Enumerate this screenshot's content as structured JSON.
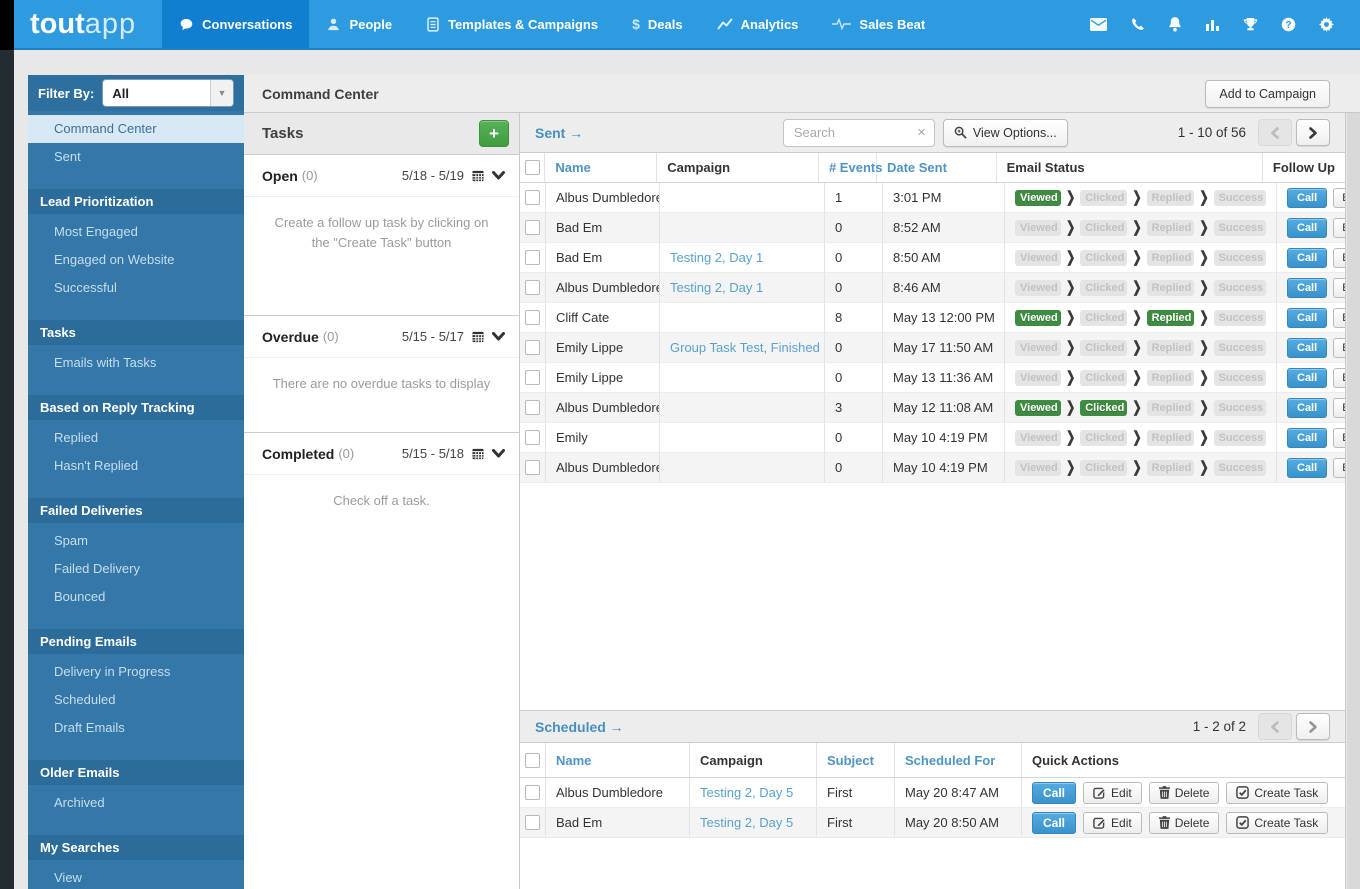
{
  "nav": {
    "logo": {
      "bold": "tout",
      "light": "app"
    },
    "items": [
      {
        "label": "Conversations",
        "icon": "speech-bubble",
        "active": true
      },
      {
        "label": "People",
        "icon": "person",
        "active": false
      },
      {
        "label": "Templates & Campaigns",
        "icon": "document",
        "active": false
      },
      {
        "label": "Deals",
        "icon": "dollar",
        "active": false
      },
      {
        "label": "Analytics",
        "icon": "line-chart",
        "active": false
      },
      {
        "label": "Sales Beat",
        "icon": "pulse",
        "active": false
      }
    ],
    "right_icons": [
      "envelope",
      "phone",
      "bell",
      "bar-chart",
      "trophy",
      "help",
      "gear"
    ]
  },
  "sidebar": {
    "filter_label": "Filter By:",
    "filter_value": "All",
    "groups": [
      {
        "header": null,
        "items": [
          {
            "label": "Command Center",
            "selected": true
          },
          {
            "label": "Sent",
            "selected": false
          }
        ]
      },
      {
        "header": "Lead Prioritization",
        "items": [
          {
            "label": "Most Engaged"
          },
          {
            "label": "Engaged on Website"
          },
          {
            "label": "Successful"
          }
        ]
      },
      {
        "header": "Tasks",
        "items": [
          {
            "label": "Emails with Tasks"
          }
        ]
      },
      {
        "header": "Based on Reply Tracking",
        "items": [
          {
            "label": "Replied"
          },
          {
            "label": "Hasn't Replied"
          }
        ]
      },
      {
        "header": "Failed Deliveries",
        "items": [
          {
            "label": "Spam"
          },
          {
            "label": "Failed Delivery"
          },
          {
            "label": "Bounced"
          }
        ]
      },
      {
        "header": "Pending Emails",
        "items": [
          {
            "label": "Delivery in Progress"
          },
          {
            "label": "Scheduled"
          },
          {
            "label": "Draft Emails"
          }
        ]
      },
      {
        "header": "Older Emails",
        "items": [
          {
            "label": "Archived"
          }
        ]
      },
      {
        "header": "My Searches",
        "items": [
          {
            "label": "View"
          }
        ]
      }
    ]
  },
  "header": {
    "title": "Command Center",
    "add_to_campaign": "Add to Campaign"
  },
  "tasks": {
    "title": "Tasks",
    "add_button": "+",
    "sections": [
      {
        "name": "Open",
        "count": "(0)",
        "range": "5/18 - 5/19",
        "message": "Create a follow up task by clicking on the \"Create Task\" button"
      },
      {
        "name": "Overdue",
        "count": "(0)",
        "range": "5/15 - 5/17",
        "message": "There are no overdue tasks to display"
      },
      {
        "name": "Completed",
        "count": "(0)",
        "range": "5/15 - 5/18",
        "message": "Check off a task."
      }
    ]
  },
  "sent": {
    "link": "Sent →",
    "search_placeholder": "Search",
    "view_options": "View Options...",
    "pagination": "1 - 10 of 56",
    "status_stages": [
      "Viewed",
      "Clicked",
      "Replied",
      "Success"
    ],
    "follow_up_buttons": [
      "Call",
      "Email"
    ],
    "columns": [
      {
        "label": "Name",
        "sortable": true
      },
      {
        "label": "Campaign",
        "sortable": false
      },
      {
        "label": "# Events",
        "sortable": true
      },
      {
        "label": "Date Sent",
        "sortable": true
      },
      {
        "label": "Email Status",
        "sortable": false
      },
      {
        "label": "Follow Up",
        "sortable": false
      }
    ],
    "rows": [
      {
        "name": "Albus Dumbledore",
        "campaign": "",
        "events": "1",
        "date_sent": "3:01 PM",
        "status": [
          1,
          0,
          0,
          0
        ]
      },
      {
        "name": "Bad Em",
        "campaign": "",
        "events": "0",
        "date_sent": "8:52 AM",
        "status": [
          0,
          0,
          0,
          0
        ]
      },
      {
        "name": "Bad Em",
        "campaign": "Testing 2, Day 1",
        "events": "0",
        "date_sent": "8:50 AM",
        "status": [
          0,
          0,
          0,
          0
        ]
      },
      {
        "name": "Albus Dumbledore",
        "campaign": "Testing 2, Day 1",
        "events": "0",
        "date_sent": "8:46 AM",
        "status": [
          0,
          0,
          0,
          0
        ]
      },
      {
        "name": "Cliff Cate",
        "campaign": "",
        "events": "8",
        "date_sent": "May 13 12:00 PM",
        "status": [
          1,
          0,
          1,
          0
        ]
      },
      {
        "name": "Emily Lippe",
        "campaign": "Group Task Test, Finished",
        "events": "0",
        "date_sent": "May 17 11:50 AM",
        "status": [
          0,
          0,
          0,
          0
        ]
      },
      {
        "name": "Emily Lippe",
        "campaign": "",
        "events": "0",
        "date_sent": "May 13 11:36 AM",
        "status": [
          0,
          0,
          0,
          0
        ]
      },
      {
        "name": "Albus Dumbledore",
        "campaign": "",
        "events": "3",
        "date_sent": "May 12 11:08 AM",
        "status": [
          1,
          1,
          0,
          0
        ]
      },
      {
        "name": "Emily",
        "campaign": "",
        "events": "0",
        "date_sent": "May 10 4:19 PM",
        "status": [
          0,
          0,
          0,
          0
        ]
      },
      {
        "name": "Albus Dumbledore",
        "campaign": "",
        "events": "0",
        "date_sent": "May 10 4:19 PM",
        "status": [
          0,
          0,
          0,
          0
        ]
      }
    ]
  },
  "scheduled": {
    "link": "Scheduled →",
    "pagination": "1 - 2 of 2",
    "columns": [
      {
        "label": "Name",
        "sortable": true
      },
      {
        "label": "Campaign",
        "sortable": false
      },
      {
        "label": "Subject",
        "sortable": true
      },
      {
        "label": "Scheduled For",
        "sortable": true
      },
      {
        "label": "Quick Actions",
        "sortable": false
      }
    ],
    "action_buttons": [
      "Call",
      "Edit",
      "Delete",
      "Create Task"
    ],
    "rows": [
      {
        "name": "Albus Dumbledore",
        "campaign": "Testing 2, Day 5",
        "subject": "First",
        "scheduled_for": "May 20 8:47 AM"
      },
      {
        "name": "Bad Em",
        "campaign": "Testing 2, Day 5",
        "subject": "First",
        "scheduled_for": "May 20 8:50 AM"
      }
    ]
  },
  "colors": {
    "nav_blue": "#2E9BE1",
    "nav_active": "#117FD0",
    "sidebar_blue": "#3378A8",
    "sidebar_header": "#2C6C9B",
    "sidebar_selected_bg": "#D8E9F5",
    "badge_green": "#3E8C41",
    "badge_gray": "#E4E4E4",
    "call_button_blue": "#3A92CC",
    "link_blue": "#4E94C4",
    "plus_green": "#3F9C3F"
  }
}
